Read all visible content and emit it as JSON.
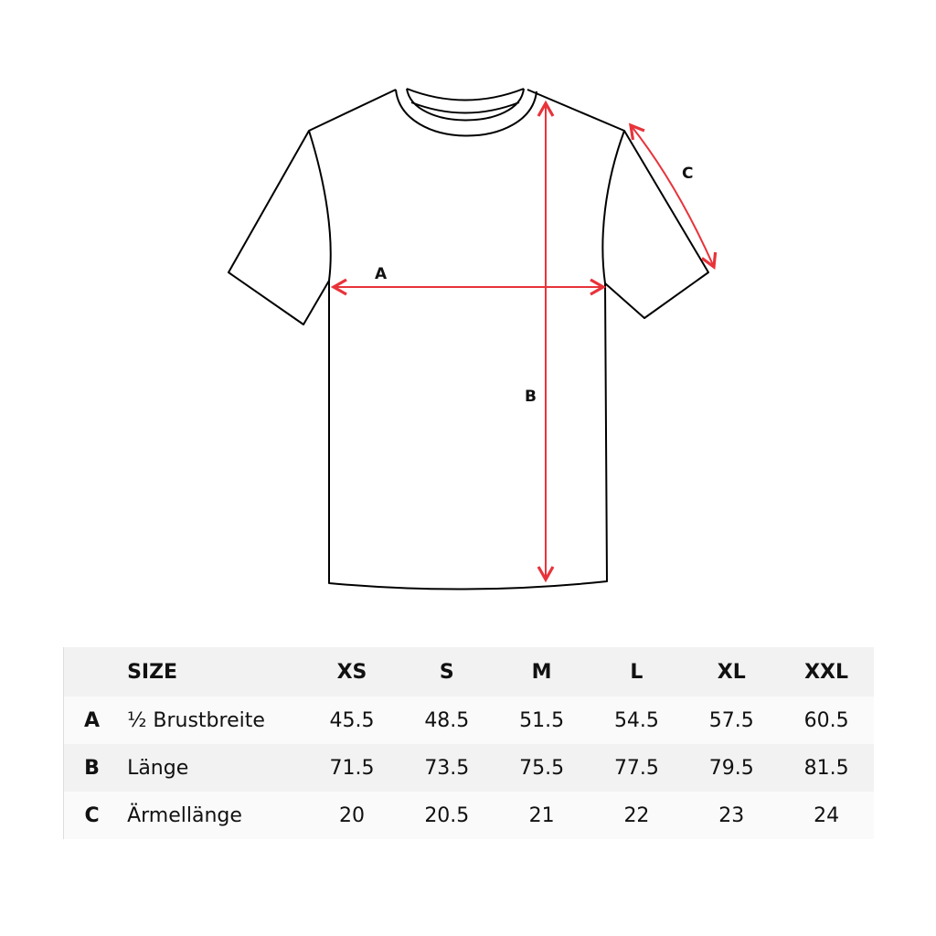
{
  "diagram": {
    "labels": {
      "a": "A",
      "b": "B",
      "c": "C"
    },
    "arrow_color": "#e8333a",
    "line_color": "#000000"
  },
  "table": {
    "header": {
      "size_label": "SIZE",
      "sizes": [
        "XS",
        "S",
        "M",
        "L",
        "XL",
        "XXL"
      ]
    },
    "rows": [
      {
        "key": "A",
        "name": "½ Brustbreite",
        "values": [
          "45.5",
          "48.5",
          "51.5",
          "54.5",
          "57.5",
          "60.5"
        ]
      },
      {
        "key": "B",
        "name": "Länge",
        "values": [
          "71.5",
          "73.5",
          "75.5",
          "77.5",
          "79.5",
          "81.5"
        ]
      },
      {
        "key": "C",
        "name": "Ärmellänge",
        "values": [
          "20",
          "20.5",
          "21",
          "22",
          "23",
          "24"
        ]
      }
    ]
  }
}
